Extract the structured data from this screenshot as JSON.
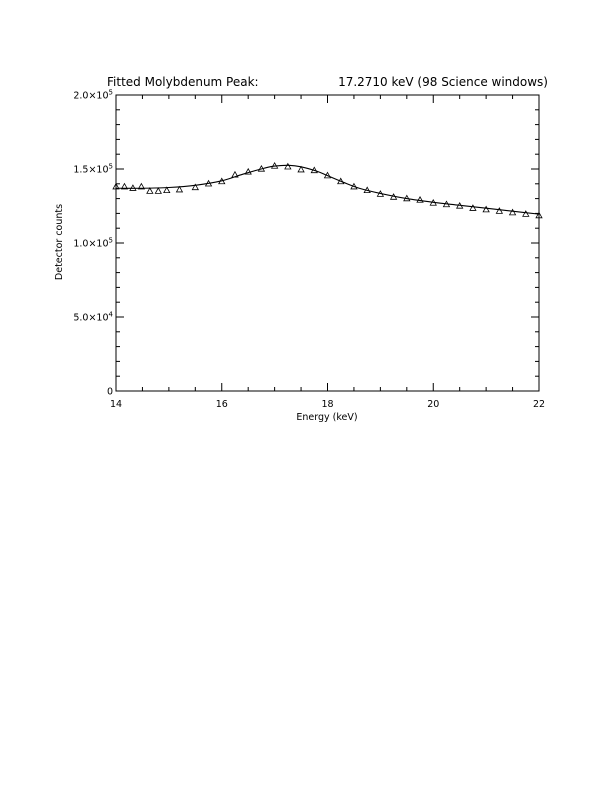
{
  "chart_data": {
    "type": "scatter",
    "title_left": "Fitted Molybdenum Peak:",
    "title_right": "17.2710 keV (98 Science windows)",
    "xlabel": "Energy (keV)",
    "ylabel": "Detector counts",
    "xlim": [
      14,
      22
    ],
    "ylim": [
      0,
      200000
    ],
    "x_ticks": [
      {
        "value": 14,
        "label": "14"
      },
      {
        "value": 16,
        "label": "16"
      },
      {
        "value": 18,
        "label": "18"
      },
      {
        "value": 20,
        "label": "20"
      },
      {
        "value": 22,
        "label": "22"
      }
    ],
    "y_ticks": [
      {
        "value": 0,
        "mantissa": "0",
        "exp": ""
      },
      {
        "value": 50000,
        "mantissa": "5.0×10",
        "exp": "4"
      },
      {
        "value": 100000,
        "mantissa": "1.0×10",
        "exp": "5"
      },
      {
        "value": 150000,
        "mantissa": "1.5×10",
        "exp": "5"
      },
      {
        "value": 200000,
        "mantissa": "2.0×10",
        "exp": "5"
      }
    ],
    "series": [
      {
        "marker": "triangle",
        "x": [
          14.0,
          14.16,
          14.32,
          14.48,
          14.64,
          14.8,
          14.96,
          15.2,
          15.5,
          15.75,
          16.0,
          16.25,
          16.5,
          16.75,
          17.0,
          17.25,
          17.5,
          17.75,
          18.0,
          18.25,
          18.5,
          18.75,
          19.0,
          19.25,
          19.5,
          19.75,
          20.0,
          20.25,
          20.5,
          20.75,
          21.0,
          21.25,
          21.5,
          21.75,
          22.0
        ],
        "y": [
          138000,
          138000,
          137000,
          138000,
          135000,
          135000,
          135500,
          136000,
          137500,
          140000,
          141500,
          146000,
          148000,
          150000,
          152000,
          151500,
          149500,
          149000,
          145500,
          141500,
          138000,
          135500,
          133000,
          131000,
          130000,
          129000,
          127000,
          126000,
          125000,
          123500,
          122500,
          121500,
          120500,
          119500,
          118500
        ]
      },
      {
        "marker": "line",
        "x": [
          14.0,
          14.5,
          15.0,
          15.5,
          16.0,
          16.4,
          16.8,
          17.0,
          17.27,
          17.5,
          17.8,
          18.0,
          18.3,
          18.6,
          19.0,
          19.5,
          20.0,
          20.5,
          21.0,
          21.5,
          22.0
        ],
        "y": [
          137000,
          137000,
          137500,
          139000,
          142000,
          146500,
          150500,
          152000,
          152500,
          151500,
          148500,
          145500,
          141000,
          137000,
          133500,
          130000,
          127500,
          125500,
          123500,
          121500,
          119500
        ]
      }
    ]
  }
}
